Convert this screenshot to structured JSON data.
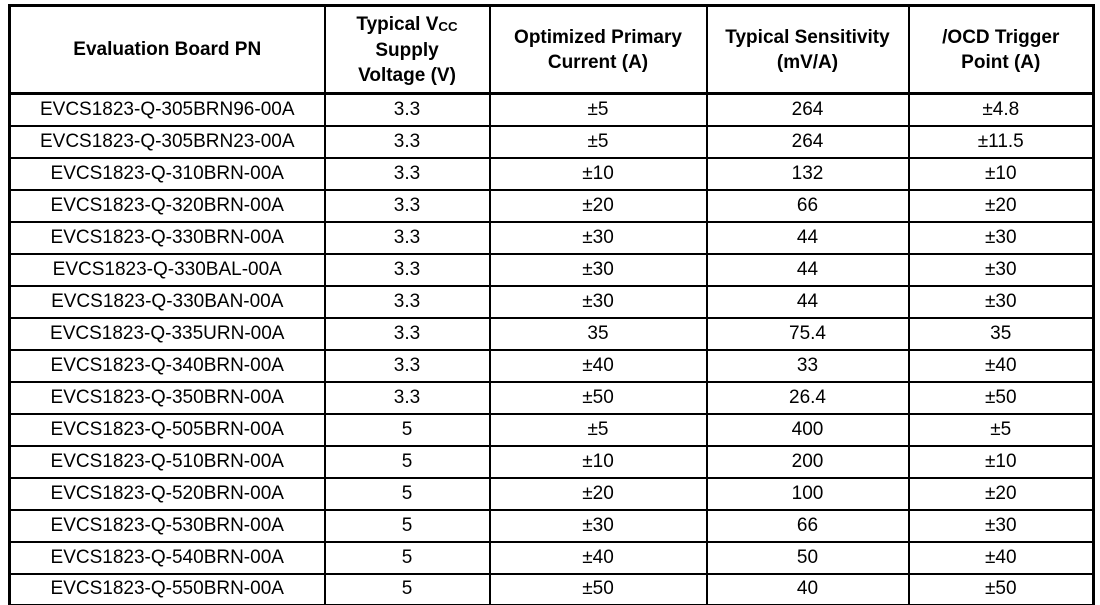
{
  "page": {
    "background_color": "#ffffff",
    "border_color": "#000000",
    "text_color": "#000000"
  },
  "table": {
    "header": {
      "col1": "Evaluation Board PN",
      "col2": {
        "line1_prefix": "Typical V",
        "line1_sub": "CC",
        "line2": "Supply",
        "line3": "Voltage (V)"
      },
      "col3_lines": [
        "Optimized Primary",
        "Current (A)"
      ],
      "col4_lines": [
        "Typical Sensitivity",
        "(mV/A)"
      ],
      "col5_lines": [
        "/OCD Trigger",
        "Point (A)"
      ]
    },
    "rows": [
      [
        "EVCS1823-Q-305BRN96-00A",
        "3.3",
        "±5",
        "264",
        "±4.8"
      ],
      [
        "EVCS1823-Q-305BRN23-00A",
        "3.3",
        "±5",
        "264",
        "±11.5"
      ],
      [
        "EVCS1823-Q-310BRN-00A",
        "3.3",
        "±10",
        "132",
        "±10"
      ],
      [
        "EVCS1823-Q-320BRN-00A",
        "3.3",
        "±20",
        "66",
        "±20"
      ],
      [
        "EVCS1823-Q-330BRN-00A",
        "3.3",
        "±30",
        "44",
        "±30"
      ],
      [
        "EVCS1823-Q-330BAL-00A",
        "3.3",
        "±30",
        "44",
        "±30"
      ],
      [
        "EVCS1823-Q-330BAN-00A",
        "3.3",
        "±30",
        "44",
        "±30"
      ],
      [
        "EVCS1823-Q-335URN-00A",
        "3.3",
        "35",
        "75.4",
        "35"
      ],
      [
        "EVCS1823-Q-340BRN-00A",
        "3.3",
        "±40",
        "33",
        "±40"
      ],
      [
        "EVCS1823-Q-350BRN-00A",
        "3.3",
        "±50",
        "26.4",
        "±50"
      ],
      [
        "EVCS1823-Q-505BRN-00A",
        "5",
        "±5",
        "400",
        "±5"
      ],
      [
        "EVCS1823-Q-510BRN-00A",
        "5",
        "±10",
        "200",
        "±10"
      ],
      [
        "EVCS1823-Q-520BRN-00A",
        "5",
        "±20",
        "100",
        "±20"
      ],
      [
        "EVCS1823-Q-530BRN-00A",
        "5",
        "±30",
        "66",
        "±30"
      ],
      [
        "EVCS1823-Q-540BRN-00A",
        "5",
        "±40",
        "50",
        "±40"
      ],
      [
        "EVCS1823-Q-550BRN-00A",
        "5",
        "±50",
        "40",
        "±50"
      ]
    ]
  }
}
